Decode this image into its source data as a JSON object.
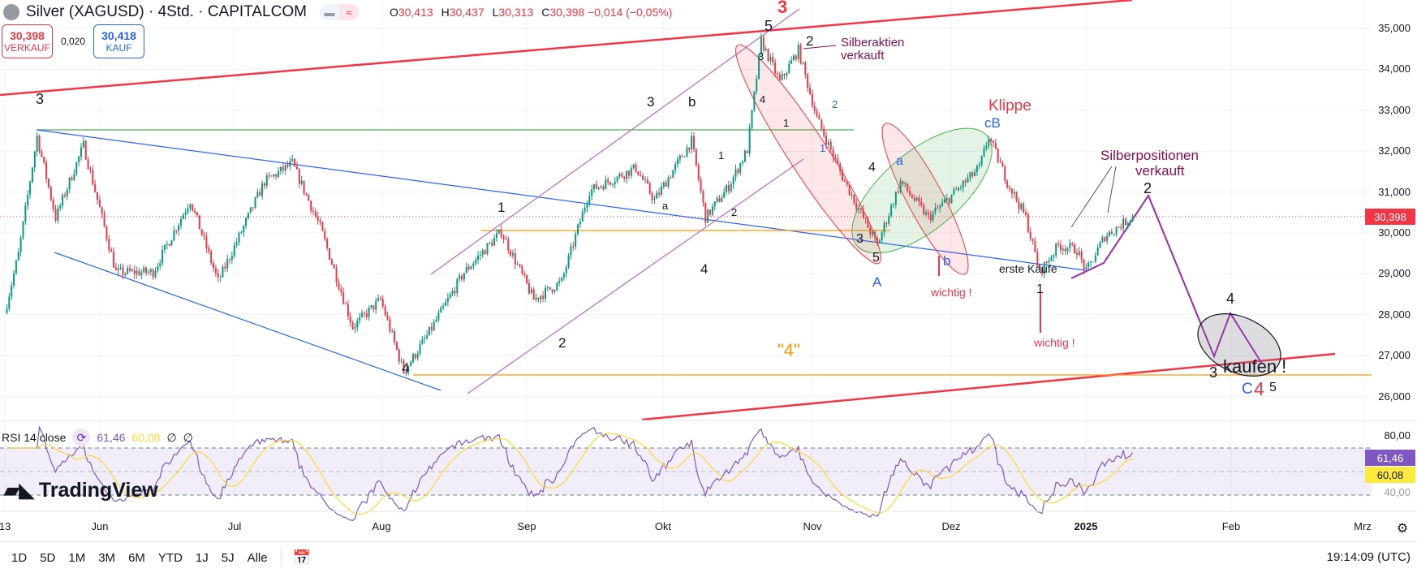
{
  "header": {
    "title": "Silver (XAGUSD) · 4Std. · CAPITALCOM",
    "ohlc": {
      "o_label": "O",
      "o": "30,413",
      "h_label": "H",
      "h": "30,437",
      "l_label": "L",
      "l": "30,313",
      "c_label": "C",
      "c": "30,398 −0,014 (−0,05%)"
    },
    "pill_icon": "≈"
  },
  "trade": {
    "sell_price": "30,398",
    "sell_label": "VERKAUF",
    "spread": "0,020",
    "buy_price": "30,418",
    "buy_label": "KAUF"
  },
  "price_axis": {
    "labels": [
      "35,000",
      "34,000",
      "33,000",
      "32,000",
      "31,000",
      "30,000",
      "29,000",
      "28,000",
      "27,000",
      "26,000"
    ],
    "current": "30,398"
  },
  "rsi": {
    "legend": "RSI 14 close",
    "value": "61,46",
    "ma": "60,08",
    "na1": "∅",
    "na2": "∅",
    "axis_80": "80,00",
    "axis_hidden": "40,00"
  },
  "time_axis": [
    "13",
    "Jun",
    "Jul",
    "Aug",
    "Sep",
    "Okt",
    "Nov",
    "Dez",
    "2025",
    "Feb",
    "Mrz"
  ],
  "toolbar": {
    "ranges": [
      "1D",
      "5D",
      "1M",
      "3M",
      "6M",
      "YTD",
      "1J",
      "5J",
      "Alle"
    ],
    "clock": "19:14:09 (UTC)"
  },
  "logo": "TradingView",
  "colors": {
    "up": "#089981",
    "down": "#f23645",
    "rsi": "#7e57c2",
    "rsi_ma": "#fdd835",
    "accent": "#2962ff"
  },
  "annotations": [
    "3",
    "5",
    "3",
    "2",
    "Silberaktien",
    "verkauft",
    "3",
    "b",
    "1",
    "2",
    "4",
    "4",
    "a",
    "2",
    "1",
    "3",
    "4",
    "1",
    "1",
    "2",
    "4",
    "a",
    "3",
    "5",
    "A",
    "b",
    "Klippe",
    "cB",
    "wichtig !",
    "wichtig !",
    "erste Käufe",
    "1",
    "Silberpositionen",
    "verkauft",
    "2",
    "\"4\"",
    "4",
    "3",
    "kaufen !",
    "C",
    "4",
    "5"
  ],
  "chart_data": {
    "type": "candlestick",
    "title": "Silver (XAGUSD) 4h",
    "x_unit": "days since 2024-05-13",
    "price_path": [
      [
        0,
        28040
      ],
      [
        3,
        29480
      ],
      [
        7,
        32360
      ],
      [
        11,
        30370
      ],
      [
        17,
        32140
      ],
      [
        24,
        29040
      ],
      [
        32,
        29040
      ],
      [
        40,
        30800
      ],
      [
        46,
        28810
      ],
      [
        56,
        31250
      ],
      [
        62,
        31700
      ],
      [
        68,
        30140
      ],
      [
        75,
        27700
      ],
      [
        81,
        28370
      ],
      [
        86,
        26600
      ],
      [
        91,
        27480
      ],
      [
        99,
        29040
      ],
      [
        107,
        30030
      ],
      [
        114,
        28370
      ],
      [
        120,
        28810
      ],
      [
        126,
        31030
      ],
      [
        136,
        31590
      ],
      [
        140,
        30800
      ],
      [
        148,
        32250
      ],
      [
        151,
        30370
      ],
      [
        156,
        31140
      ],
      [
        160,
        32030
      ],
      [
        163,
        34690
      ],
      [
        167,
        33690
      ],
      [
        171,
        34470
      ],
      [
        175,
        32800
      ],
      [
        181,
        31250
      ],
      [
        188,
        29700
      ],
      [
        193,
        31250
      ],
      [
        199,
        30370
      ],
      [
        203,
        30800
      ],
      [
        210,
        31590
      ],
      [
        212,
        32360
      ],
      [
        216,
        31250
      ],
      [
        220,
        30370
      ],
      [
        223,
        29040
      ],
      [
        227,
        29700
      ],
      [
        231,
        29590
      ],
      [
        233,
        29040
      ],
      [
        237,
        29920
      ],
      [
        243,
        30398
      ]
    ],
    "ylim": [
      25500,
      35600
    ],
    "rsi_range": [
      0,
      100
    ]
  }
}
